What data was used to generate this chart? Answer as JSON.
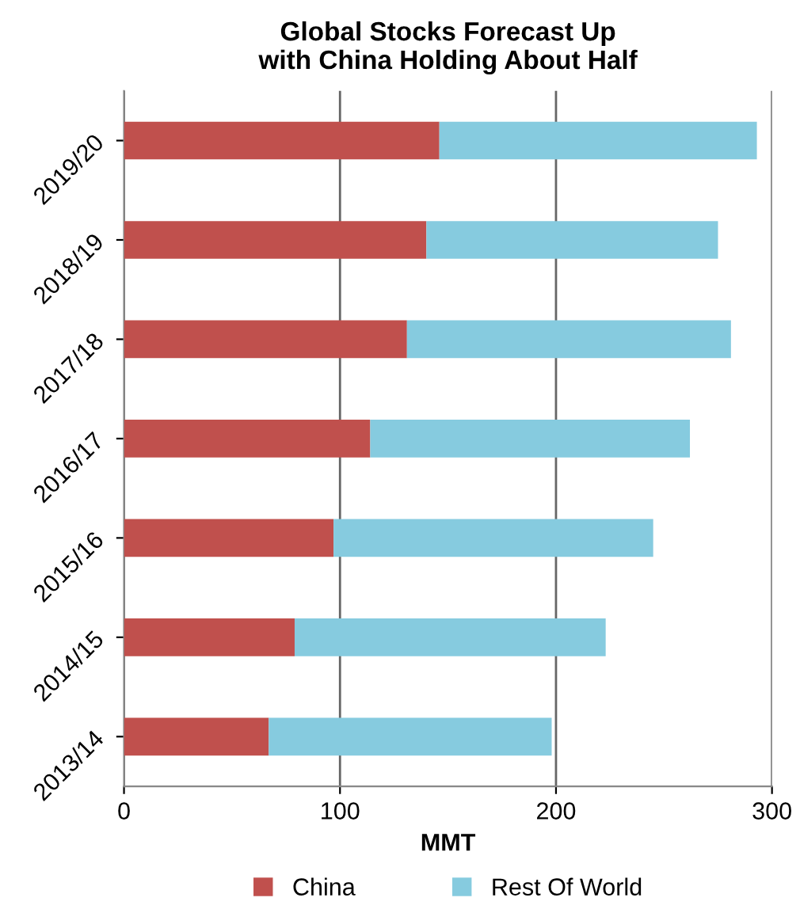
{
  "chart_data": {
    "type": "bar",
    "orientation": "horizontal",
    "stacked": true,
    "title": "Global Stocks Forecast Up\nwith China Holding About Half",
    "xlabel": "MMT",
    "categories": [
      "2019/20",
      "2018/19",
      "2017/18",
      "2016/17",
      "2015/16",
      "2014/15",
      "2013/14"
    ],
    "series": [
      {
        "name": "China",
        "color": "#c0504d",
        "values": [
          146,
          140,
          131,
          114,
          97,
          79,
          67
        ]
      },
      {
        "name": "Rest Of World",
        "color": "#86cbdf",
        "values": [
          147,
          135,
          150,
          148,
          148,
          144,
          131
        ]
      }
    ],
    "xlim": [
      0,
      300
    ],
    "xticks": [
      0,
      100,
      200,
      300
    ],
    "grid": "x",
    "legend": "bottom"
  }
}
